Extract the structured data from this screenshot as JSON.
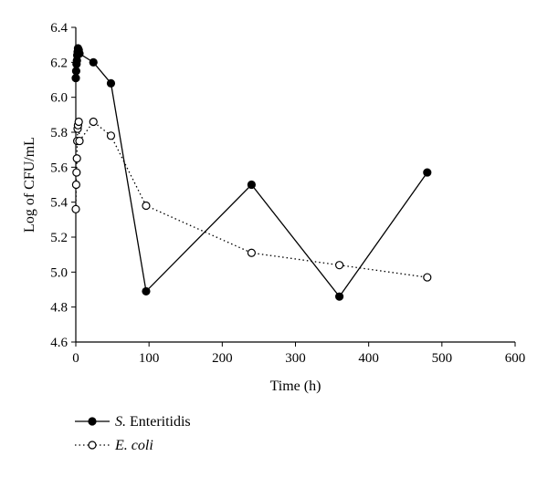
{
  "chart_data": {
    "type": "line",
    "xlabel": "Time (h)",
    "ylabel": "Log of CFU/mL",
    "xlim": [
      0,
      600
    ],
    "ylim": [
      4.6,
      6.4
    ],
    "x_ticks": [
      0,
      100,
      200,
      300,
      400,
      500,
      600
    ],
    "y_ticks": [
      4.6,
      4.8,
      5.0,
      5.2,
      5.4,
      5.6,
      5.8,
      6.0,
      6.2,
      6.4
    ],
    "grid": false,
    "legend_position": "bottom-left",
    "series": [
      {
        "name_italic": "S.",
        "name_rest": " Enteritidis",
        "marker": "filled-circle",
        "line_style": "solid",
        "color": "#000000",
        "points": [
          [
            0,
            6.11
          ],
          [
            0.5,
            6.15
          ],
          [
            1,
            6.19
          ],
          [
            1.5,
            6.21
          ],
          [
            2,
            6.24
          ],
          [
            2.5,
            6.26
          ],
          [
            3,
            6.28
          ],
          [
            4,
            6.27
          ],
          [
            5,
            6.25
          ],
          [
            24,
            6.2
          ],
          [
            48,
            6.08
          ],
          [
            96,
            4.89
          ],
          [
            240,
            5.5
          ],
          [
            360,
            4.86
          ],
          [
            480,
            5.57
          ]
        ]
      },
      {
        "name_italic": "E. coli",
        "name_rest": "",
        "marker": "open-circle",
        "line_style": "dotted",
        "color": "#000000",
        "points": [
          [
            0,
            5.36
          ],
          [
            0.5,
            5.5
          ],
          [
            1,
            5.57
          ],
          [
            1.5,
            5.65
          ],
          [
            2,
            5.75
          ],
          [
            2.5,
            5.82
          ],
          [
            3,
            5.84
          ],
          [
            4,
            5.86
          ],
          [
            5,
            5.75
          ],
          [
            24,
            5.86
          ],
          [
            48,
            5.78
          ],
          [
            96,
            5.38
          ],
          [
            240,
            5.11
          ],
          [
            360,
            5.04
          ],
          [
            480,
            4.97
          ]
        ]
      }
    ]
  }
}
